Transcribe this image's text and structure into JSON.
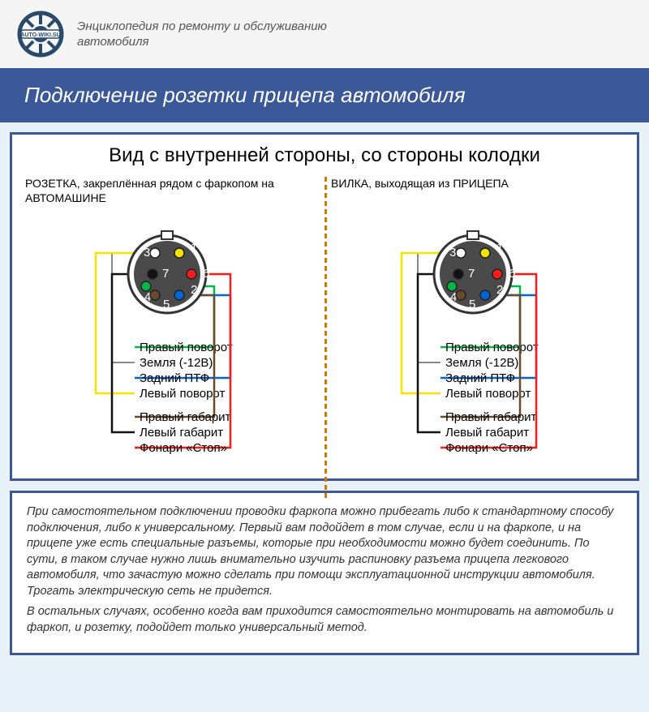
{
  "header": {
    "logo_text": "AUTO-WIKI.SU",
    "subtitle_line1": "Энциклопедия по ремонту и обслуживанию",
    "subtitle_line2": "автомобиля"
  },
  "title": "Подключение розетки прицепа автомобиля",
  "diagram": {
    "heading": "Вид с внутренней стороны, со стороны колодки",
    "left_title": "РОЗЕТКА, закреплённая рядом с фаркопом на АВТОМАШИНЕ",
    "right_title": "ВИЛКА, выходящая из ПРИЦЕПА",
    "pins": [
      {
        "num": "1",
        "angle": -60,
        "color": "#f5e400"
      },
      {
        "num": "2",
        "angle": 60,
        "color": "#0066d6"
      },
      {
        "num": "3",
        "angle": -120,
        "color": "#ffffff"
      },
      {
        "num": "4",
        "angle": 150,
        "color": "#00b84a"
      },
      {
        "num": "5",
        "angle": 120,
        "color": "#6b4a2a"
      },
      {
        "num": "6",
        "angle": 0,
        "color": "#ff1a1a"
      },
      {
        "num": "7",
        "angle": 180,
        "color": "#111111"
      }
    ],
    "connector": {
      "outer_stroke": "#333333",
      "inner_fill": "#4a4a4a",
      "pin_stroke": "#333333",
      "radius_outer": 48,
      "radius_pins": 30,
      "pin_radius": 6
    },
    "wires": [
      {
        "label": "Правый поворот",
        "color": "#00b84a",
        "pin": "4"
      },
      {
        "label": "Земля (-12В)",
        "color": "#ffffff",
        "pin": "3",
        "stroke_override": "#888888"
      },
      {
        "label": "Задний ПТФ",
        "color": "#0066d6",
        "pin": "2"
      },
      {
        "label": "Левый поворот",
        "color": "#f5e400",
        "pin": "1"
      },
      {
        "label": "Правый габарит",
        "color": "#6b4a2a",
        "pin": "5"
      },
      {
        "label": "Левый габарит",
        "color": "#111111",
        "pin": "7"
      },
      {
        "label": "Фонари «Стоп»",
        "color": "#ff1a1a",
        "pin": "6"
      }
    ]
  },
  "info_text": {
    "p1": "При самостоятельном подключении проводки фаркопа можно прибегать либо к стандартному способу подключения, либо к универсальному. Первый вам подойдет в том случае, если и на фаркопе, и на прицепе уже есть специальные разъемы, которые при необходимости можно будет соединить. По сути, в таком случае нужно лишь внимательно изучить распиновку разъема прицепа легкового автомобиля, что зачастую можно сделать при помощи эксплуатационной инструкции автомобиля. Трогать электрическую сеть не придется.",
    "p2": "В остальных случаях, особенно когда вам приходится самостоятельно монтировать на автомобиль и фаркоп, и розетку, подойдет только универсальный метод."
  }
}
